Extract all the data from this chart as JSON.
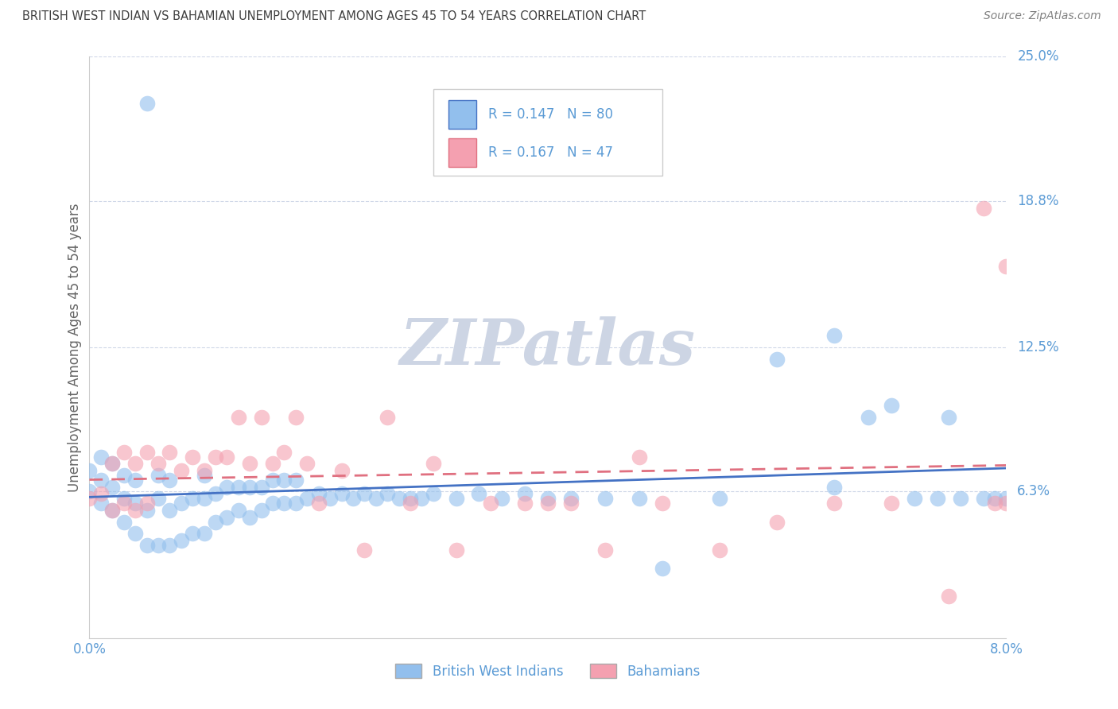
{
  "title": "BRITISH WEST INDIAN VS BAHAMIAN UNEMPLOYMENT AMONG AGES 45 TO 54 YEARS CORRELATION CHART",
  "source": "Source: ZipAtlas.com",
  "ylabel": "Unemployment Among Ages 45 to 54 years",
  "xmin": 0.0,
  "xmax": 0.08,
  "ymin": 0.0,
  "ymax": 0.25,
  "ytick_vals": [
    0.063,
    0.125,
    0.188,
    0.25
  ],
  "ytick_labels": [
    "6.3%",
    "12.5%",
    "18.8%",
    "25.0%"
  ],
  "xtick_vals": [
    0.0,
    0.02,
    0.04,
    0.06,
    0.08
  ],
  "xtick_labels": [
    "0.0%",
    "",
    "",
    "",
    "8.0%"
  ],
  "blue_color": "#92BFED",
  "pink_color": "#F4A0B0",
  "blue_label": "British West Indians",
  "pink_label": "Bahamians",
  "R_blue": 0.147,
  "N_blue": 80,
  "R_pink": 0.167,
  "N_pink": 47,
  "blue_line_color": "#4472C4",
  "pink_line_color": "#E07080",
  "watermark_color": "#CDD5E4",
  "axis_label_color": "#5B9BD5",
  "grid_color": "#D0D8E8",
  "title_color": "#404040",
  "source_color": "#808080",
  "blue_scatter": {
    "x": [
      0.0,
      0.0,
      0.001,
      0.001,
      0.001,
      0.002,
      0.002,
      0.002,
      0.003,
      0.003,
      0.003,
      0.004,
      0.004,
      0.004,
      0.005,
      0.005,
      0.005,
      0.006,
      0.006,
      0.006,
      0.007,
      0.007,
      0.007,
      0.008,
      0.008,
      0.009,
      0.009,
      0.01,
      0.01,
      0.01,
      0.011,
      0.011,
      0.012,
      0.012,
      0.013,
      0.013,
      0.014,
      0.014,
      0.015,
      0.015,
      0.016,
      0.016,
      0.017,
      0.017,
      0.018,
      0.018,
      0.019,
      0.02,
      0.021,
      0.022,
      0.023,
      0.024,
      0.025,
      0.026,
      0.027,
      0.028,
      0.029,
      0.03,
      0.032,
      0.034,
      0.036,
      0.038,
      0.04,
      0.042,
      0.045,
      0.048,
      0.05,
      0.055,
      0.06,
      0.065,
      0.065,
      0.068,
      0.07,
      0.072,
      0.074,
      0.075,
      0.076,
      0.078,
      0.079,
      0.08
    ],
    "y": [
      0.063,
      0.072,
      0.058,
      0.068,
      0.078,
      0.055,
      0.065,
      0.075,
      0.05,
      0.06,
      0.07,
      0.045,
      0.058,
      0.068,
      0.04,
      0.055,
      0.23,
      0.04,
      0.06,
      0.07,
      0.04,
      0.055,
      0.068,
      0.042,
      0.058,
      0.045,
      0.06,
      0.045,
      0.06,
      0.07,
      0.05,
      0.062,
      0.052,
      0.065,
      0.055,
      0.065,
      0.052,
      0.065,
      0.055,
      0.065,
      0.058,
      0.068,
      0.058,
      0.068,
      0.058,
      0.068,
      0.06,
      0.062,
      0.06,
      0.062,
      0.06,
      0.062,
      0.06,
      0.062,
      0.06,
      0.06,
      0.06,
      0.062,
      0.06,
      0.062,
      0.06,
      0.062,
      0.06,
      0.06,
      0.06,
      0.06,
      0.03,
      0.06,
      0.12,
      0.065,
      0.13,
      0.095,
      0.1,
      0.06,
      0.06,
      0.095,
      0.06,
      0.06,
      0.06,
      0.06
    ]
  },
  "pink_scatter": {
    "x": [
      0.0,
      0.001,
      0.002,
      0.002,
      0.003,
      0.003,
      0.004,
      0.004,
      0.005,
      0.005,
      0.006,
      0.007,
      0.008,
      0.009,
      0.01,
      0.011,
      0.012,
      0.013,
      0.014,
      0.015,
      0.016,
      0.017,
      0.018,
      0.019,
      0.02,
      0.022,
      0.024,
      0.026,
      0.028,
      0.03,
      0.032,
      0.035,
      0.038,
      0.04,
      0.042,
      0.045,
      0.048,
      0.05,
      0.055,
      0.06,
      0.065,
      0.07,
      0.075,
      0.078,
      0.079,
      0.08,
      0.08
    ],
    "y": [
      0.06,
      0.062,
      0.055,
      0.075,
      0.058,
      0.08,
      0.055,
      0.075,
      0.058,
      0.08,
      0.075,
      0.08,
      0.072,
      0.078,
      0.072,
      0.078,
      0.078,
      0.095,
      0.075,
      0.095,
      0.075,
      0.08,
      0.095,
      0.075,
      0.058,
      0.072,
      0.038,
      0.095,
      0.058,
      0.075,
      0.038,
      0.058,
      0.058,
      0.058,
      0.058,
      0.038,
      0.078,
      0.058,
      0.038,
      0.05,
      0.058,
      0.058,
      0.018,
      0.185,
      0.058,
      0.058,
      0.16
    ]
  }
}
